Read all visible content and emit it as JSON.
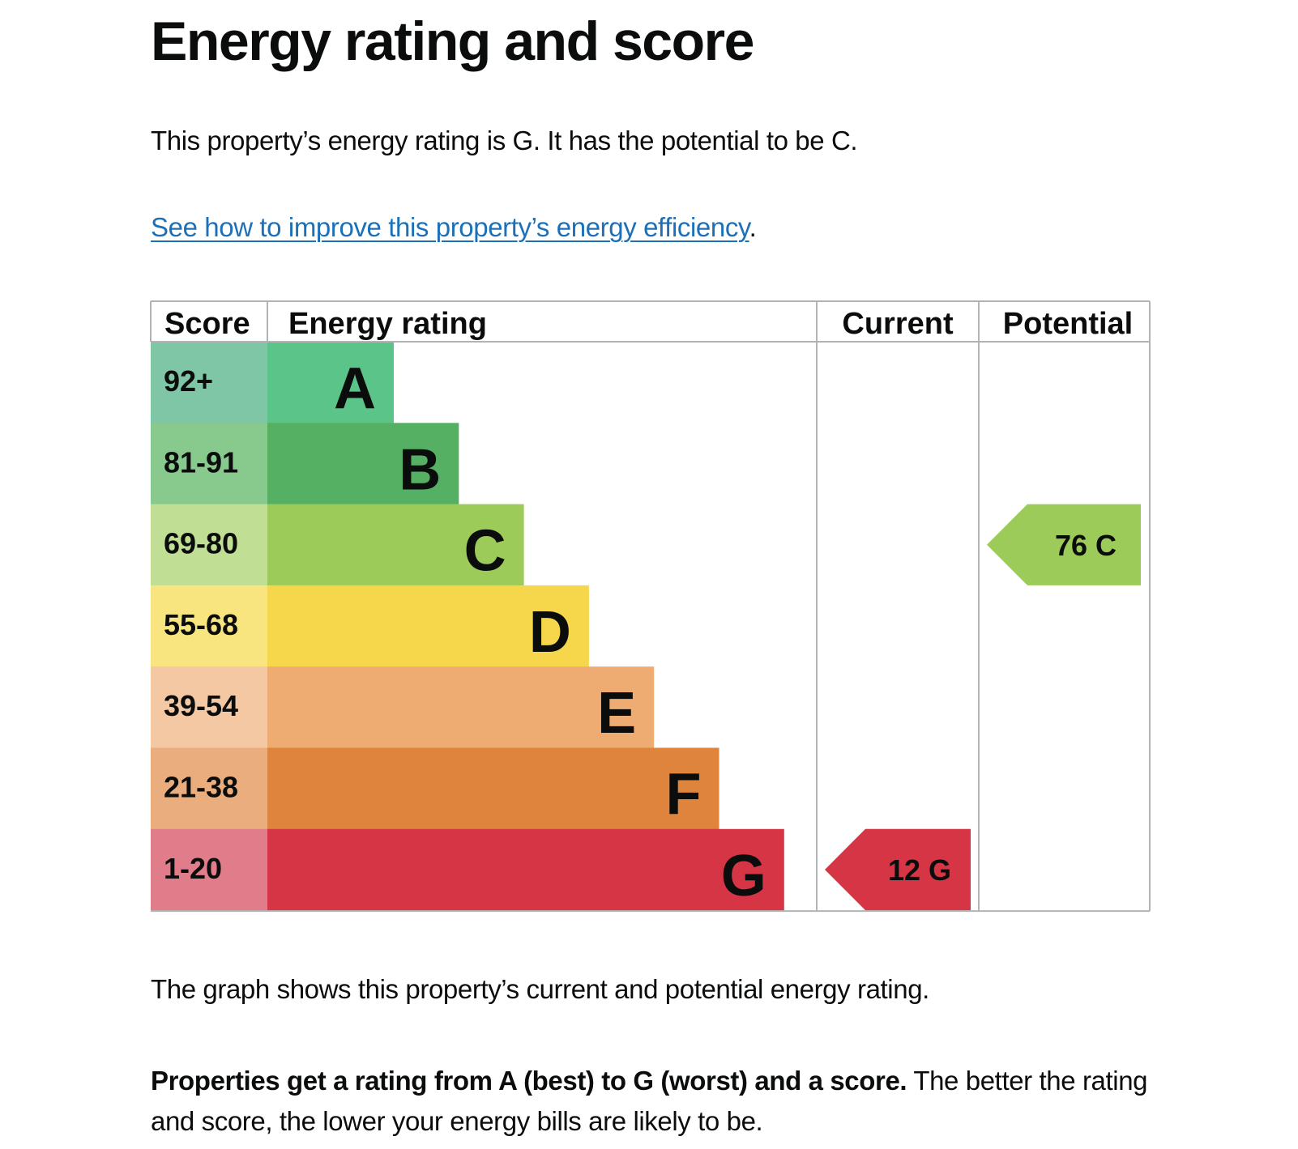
{
  "page": {
    "title": "Energy rating and score",
    "summary": "This property’s energy rating is G. It has the potential to be C.",
    "link_text": "See how to improve this property’s energy efficiency",
    "link_suffix": ".",
    "caption": "The graph shows this property’s current and potential energy rating.",
    "explanation_bold": "Properties get a rating from A (best) to G (worst) and a score.",
    "explanation_rest": " The better the rating and score, the lower your energy bills are likely to be."
  },
  "chart_data": {
    "type": "table",
    "columns": [
      "Score",
      "Energy rating",
      "Current",
      "Potential"
    ],
    "bands": [
      {
        "letter": "A",
        "score": "92+",
        "color": "#5bc589",
        "score_color": "#7ec6a6"
      },
      {
        "letter": "B",
        "score": "81-91",
        "color": "#55b063",
        "score_color": "#88c98e"
      },
      {
        "letter": "C",
        "score": "69-80",
        "color": "#9dcb5a",
        "score_color": "#c0df95"
      },
      {
        "letter": "D",
        "score": "55-68",
        "color": "#f6d74b",
        "score_color": "#f9e57f"
      },
      {
        "letter": "E",
        "score": "39-54",
        "color": "#eeac72",
        "score_color": "#f4c8a2"
      },
      {
        "letter": "F",
        "score": "21-38",
        "color": "#df843c",
        "score_color": "#eaae7e"
      },
      {
        "letter": "G",
        "score": "1-20",
        "color": "#d53544",
        "score_color": "#e17d8a"
      }
    ],
    "current": {
      "score": 12,
      "letter": "G",
      "label": "12  G"
    },
    "potential": {
      "score": 76,
      "letter": "C",
      "label": "76  C"
    }
  }
}
